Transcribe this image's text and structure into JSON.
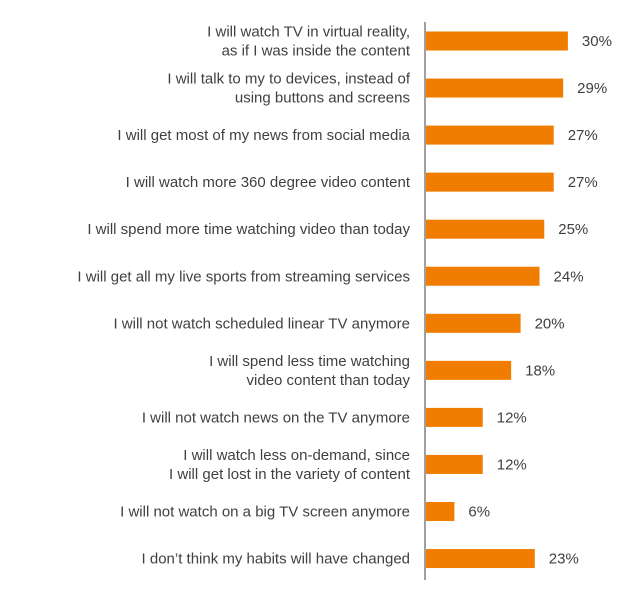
{
  "chart_data": {
    "type": "bar",
    "orientation": "horizontal",
    "categories": [
      [
        "I will watch TV in virtual reality,",
        "as if I was inside the content"
      ],
      [
        "I will talk to my to devices, instead of",
        "using buttons and screens"
      ],
      [
        "I will get most of my news from social media"
      ],
      [
        "I will watch more 360 degree video content"
      ],
      [
        "I will spend more time watching video than today"
      ],
      [
        "I will get all my live sports from streaming services"
      ],
      [
        "I will not watch scheduled linear TV anymore"
      ],
      [
        "I will spend less time watching",
        "video content than today"
      ],
      [
        "I will not watch news on the TV anymore"
      ],
      [
        "I will watch less on-demand, since",
        "I will get lost in the variety of content"
      ],
      [
        "I will not watch on a big TV screen anymore"
      ],
      [
        "I don’t think my habits will have changed"
      ]
    ],
    "values": [
      30,
      29,
      27,
      27,
      25,
      24,
      20,
      18,
      12,
      12,
      6,
      23
    ],
    "value_labels": [
      "30%",
      "29%",
      "27%",
      "27%",
      "25%",
      "24%",
      "20%",
      "18%",
      "12%",
      "12%",
      "6%",
      "23%"
    ],
    "title": "",
    "xlabel": "",
    "ylabel": "",
    "xlim": [
      0,
      30
    ],
    "grid": false,
    "colors": {
      "bar": "#F07D00",
      "axis": "#808080",
      "text": "#404040"
    }
  }
}
